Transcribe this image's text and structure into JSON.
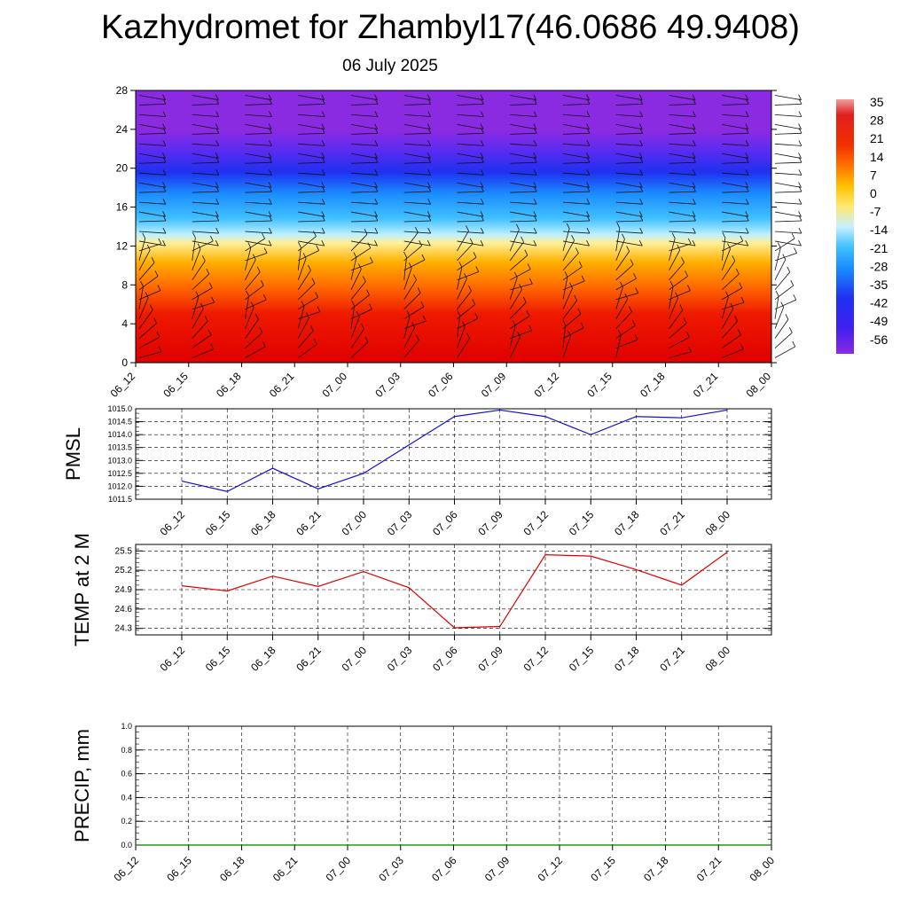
{
  "header": {
    "title": "Kazhydromet for Zhambyl17(46.0686 49.9408)",
    "subtitle": "06 July 2025"
  },
  "colorbar": {
    "labels": [
      "35",
      "28",
      "21",
      "14",
      "7",
      "0",
      "-7",
      "-14",
      "-21",
      "-28",
      "-35",
      "-42",
      "-49",
      "-56"
    ]
  },
  "chart_data": [
    {
      "type": "heatmap",
      "name": "upper-air-temperature",
      "categories": [
        "06_12",
        "06_15",
        "06_18",
        "06_21",
        "07_00",
        "07_03",
        "07_06",
        "07_09",
        "07_12",
        "07_15",
        "07_18",
        "07_21",
        "08_00"
      ],
      "ylim": [
        0,
        28
      ],
      "yticks": [
        0,
        4,
        8,
        12,
        16,
        20,
        24,
        28
      ],
      "colorbar_range": [
        -56,
        35
      ],
      "wind_barbs": true,
      "colors": {
        "hot": "#e30000",
        "orange": "#ff8c00",
        "yellow": "#fff0a0",
        "lightblue": "#9fe6ff",
        "cyan": "#1eaaff",
        "blue": "#2030f0",
        "violet": "#8a2be2"
      }
    },
    {
      "type": "line",
      "name": "pmsl",
      "ylabel": "PMSL",
      "categories": [
        "06_12",
        "06_15",
        "06_18",
        "06_21",
        "07_00",
        "07_03",
        "07_06",
        "07_09",
        "07_12",
        "07_15",
        "07_18",
        "07_21",
        "08_00"
      ],
      "values": [
        1012.2,
        1011.8,
        1012.7,
        1011.9,
        1012.5,
        1013.6,
        1014.7,
        1014.95,
        1014.7,
        1014.0,
        1014.7,
        1014.65,
        1014.95
      ],
      "ylim": [
        1011.5,
        1015.0
      ],
      "yticks": [
        1011.5,
        1012.0,
        1012.5,
        1013.0,
        1013.5,
        1014.0,
        1014.5,
        1015.0
      ],
      "grid": true,
      "color": "#1010d0"
    },
    {
      "type": "line",
      "name": "temp2m",
      "ylabel": "TEMP at 2 M",
      "categories": [
        "06_12",
        "06_15",
        "06_18",
        "06_21",
        "07_00",
        "07_03",
        "07_06",
        "07_09",
        "07_12",
        "07_15",
        "07_18",
        "07_21",
        "08_00"
      ],
      "values": [
        24.96,
        24.88,
        25.11,
        24.95,
        25.18,
        24.93,
        24.31,
        24.33,
        25.44,
        25.42,
        25.21,
        24.97,
        25.48
      ],
      "ylim": [
        24.2,
        25.6
      ],
      "yticks": [
        24.3,
        24.6,
        24.9,
        25.2,
        25.5
      ],
      "grid": true,
      "color": "#e00000"
    },
    {
      "type": "line",
      "name": "precip",
      "ylabel": "PRECIP, mm",
      "categories": [
        "06_12",
        "06_15",
        "06_18",
        "06_21",
        "07_00",
        "07_03",
        "07_06",
        "07_09",
        "07_12",
        "07_15",
        "07_18",
        "07_21",
        "08_00"
      ],
      "values": [
        0,
        0,
        0,
        0,
        0,
        0,
        0,
        0,
        0,
        0,
        0,
        0,
        0
      ],
      "ylim": [
        0,
        1.0
      ],
      "yticks": [
        0.0,
        0.2,
        0.4,
        0.6,
        0.8,
        1.0
      ],
      "grid": true,
      "color": "#007a00"
    }
  ]
}
